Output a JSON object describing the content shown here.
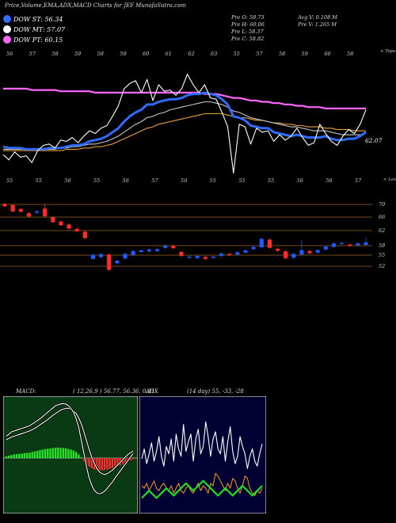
{
  "header": {
    "title": "Price,Volume,EMA,ADX,MACD Charts for JEF MunafaSutra.com",
    "legend": [
      {
        "label": "DOW ST: 56.34",
        "color": "#2f6bff"
      },
      {
        "label": "DOW MT: 57.07",
        "color": "#ffffff"
      },
      {
        "label": "DOW PT: 60.15",
        "color": "#ff66ff"
      }
    ],
    "ohlc_left": [
      "Pre O: 58.73",
      "Pre H: 60.06",
      "Pre L: 58.37",
      "Pre C: 58.82"
    ],
    "ohlc_right": [
      "Avg V: 0.108 M",
      "Pre V: 1.265 M"
    ]
  },
  "chart_data": [
    {
      "type": "line",
      "name": "price-ema-panel",
      "top_tick_labels": [
        "56",
        "57",
        "58",
        "59",
        "58",
        "59",
        "60",
        "61",
        "62",
        "63",
        "55",
        "57",
        "58",
        "59",
        "60",
        "58"
      ],
      "corner_label_top": "< Tops",
      "corner_label_bottom": "< Lows",
      "bottom_tick_labels": [
        "55",
        "55",
        "56",
        "55",
        "56",
        "57",
        "59",
        "55",
        "55",
        "55",
        "56",
        "56",
        "57"
      ],
      "last_value_label": "62.07",
      "series": [
        {
          "color": "#ffffff",
          "values": [
            56.6,
            56.2,
            56.8,
            56.4,
            56.5,
            56.0,
            56.9,
            57.3,
            57.4,
            57.1,
            57.7,
            57.6,
            57.9,
            57.5,
            58.0,
            58.4,
            58.2,
            58.6,
            58.8,
            59.5,
            60.3,
            61.6,
            62.0,
            62.2,
            61.3,
            62.3,
            60.7,
            61.9,
            61.4,
            61.5,
            61.1,
            61.6,
            62.7,
            61.9,
            61.3,
            61.9,
            60.9,
            60.8,
            59.8,
            58.7,
            55.2,
            58.9,
            58.7,
            57.4,
            58.6,
            58.3,
            58.4,
            57.6,
            58.1,
            57.7,
            58.0,
            58.6,
            57.9,
            57.3,
            57.5,
            58.9,
            58.2,
            57.6,
            57.3,
            58.0,
            58.5,
            58.2,
            58.9,
            60.0
          ]
        },
        {
          "color": "#2f6bff",
          "values": [
            57.2,
            57.1,
            57.1,
            57.1,
            57.0,
            57.0,
            57.0,
            57.0,
            57.1,
            57.1,
            57.1,
            57.2,
            57.3,
            57.3,
            57.4,
            57.6,
            57.7,
            57.8,
            58.0,
            58.3,
            58.6,
            59.1,
            59.5,
            59.8,
            60.0,
            60.4,
            60.4,
            60.6,
            60.7,
            60.8,
            60.8,
            60.9,
            61.1,
            61.2,
            61.2,
            61.3,
            61.2,
            61.1,
            60.8,
            60.4,
            59.5,
            59.4,
            59.2,
            58.8,
            58.7,
            58.6,
            58.6,
            58.3,
            58.2,
            58.1,
            58.0,
            58.1,
            58.0,
            57.9,
            57.9,
            57.9,
            58.0,
            57.8,
            57.7,
            57.7,
            57.8,
            57.8,
            58.0,
            58.3
          ]
        },
        {
          "color": "#c8c8c8",
          "values": [
            57.0,
            57.0,
            57.0,
            57.0,
            57.0,
            57.0,
            57.0,
            57.0,
            57.0,
            57.0,
            57.1,
            57.1,
            57.2,
            57.2,
            57.3,
            57.4,
            57.4,
            57.5,
            57.6,
            57.8,
            58.0,
            58.3,
            58.6,
            58.9,
            59.1,
            59.4,
            59.5,
            59.7,
            59.8,
            60.0,
            60.1,
            60.2,
            60.3,
            60.4,
            60.5,
            60.6,
            60.6,
            60.5,
            60.4,
            60.2,
            59.9,
            59.8,
            59.6,
            59.4,
            59.3,
            59.2,
            59.1,
            59.0,
            58.9,
            58.8,
            58.7,
            58.7,
            58.6,
            58.5,
            58.4,
            58.4,
            58.4,
            58.3,
            58.2,
            58.1,
            58.1,
            58.1,
            58.1,
            58.2
          ]
        },
        {
          "color": "#e8a23a",
          "values": [
            56.9,
            56.9,
            56.9,
            56.9,
            56.9,
            56.9,
            56.9,
            56.9,
            56.9,
            56.9,
            56.9,
            57.0,
            57.0,
            57.0,
            57.1,
            57.1,
            57.2,
            57.2,
            57.3,
            57.4,
            57.6,
            57.8,
            58.0,
            58.2,
            58.4,
            58.6,
            58.7,
            58.9,
            59.0,
            59.1,
            59.2,
            59.3,
            59.4,
            59.5,
            59.6,
            59.7,
            59.7,
            59.7,
            59.7,
            59.6,
            59.5,
            59.4,
            59.4,
            59.3,
            59.2,
            59.2,
            59.1,
            59.0,
            59.0,
            58.9,
            58.9,
            58.8,
            58.8,
            58.7,
            58.7,
            58.7,
            58.6,
            58.6,
            58.5,
            58.5,
            58.5,
            58.4,
            58.4,
            58.4
          ]
        },
        {
          "color": "#ff66ff",
          "values": [
            61.6,
            61.6,
            61.6,
            61.6,
            61.6,
            61.5,
            61.5,
            61.5,
            61.5,
            61.5,
            61.4,
            61.4,
            61.4,
            61.4,
            61.4,
            61.4,
            61.3,
            61.3,
            61.3,
            61.3,
            61.3,
            61.3,
            61.3,
            61.3,
            61.3,
            61.3,
            61.3,
            61.3,
            61.3,
            61.3,
            61.3,
            61.3,
            61.3,
            61.3,
            61.3,
            61.2,
            61.2,
            61.2,
            61.1,
            61.0,
            60.9,
            60.9,
            60.8,
            60.7,
            60.7,
            60.6,
            60.6,
            60.5,
            60.5,
            60.4,
            60.4,
            60.3,
            60.3,
            60.2,
            60.2,
            60.2,
            60.1,
            60.1,
            60.1,
            60.1,
            60.1,
            60.1,
            60.1,
            60.1
          ]
        }
      ]
    },
    {
      "type": "bar",
      "name": "candles-panel",
      "price_levels": [
        "70",
        "66",
        "62",
        "58",
        "55",
        "52"
      ],
      "candles": [
        {
          "o": 70.2,
          "c": 69.4,
          "h": 70.6,
          "l": 69.2
        },
        {
          "o": 69.8,
          "c": 67.8,
          "h": 70.1,
          "l": 67.5
        },
        {
          "o": 68.6,
          "c": 67.7,
          "h": 68.8,
          "l": 67.4
        },
        {
          "o": 67.2,
          "c": 66.2,
          "h": 67.6,
          "l": 65.8
        },
        {
          "o": 67.4,
          "c": 67.8,
          "h": 68.2,
          "l": 66.9
        },
        {
          "o": 68.7,
          "c": 66.3,
          "h": 70.1,
          "l": 66.0
        },
        {
          "o": 66.0,
          "c": 64.5,
          "h": 66.4,
          "l": 64.2
        },
        {
          "o": 64.7,
          "c": 63.6,
          "h": 65.1,
          "l": 63.3
        },
        {
          "o": 63.8,
          "c": 62.6,
          "h": 64.2,
          "l": 62.3
        },
        {
          "o": 62.5,
          "c": 61.8,
          "h": 63.0,
          "l": 61.5
        },
        {
          "o": 61.7,
          "c": 60.0,
          "h": 62.1,
          "l": 59.8
        },
        {
          "o": 54.0,
          "c": 55.1,
          "h": 55.4,
          "l": 53.8
        },
        {
          "o": 54.5,
          "c": 55.3,
          "h": 55.7,
          "l": 54.2
        },
        {
          "o": 55.2,
          "c": 51.0,
          "h": 55.6,
          "l": 50.6
        },
        {
          "o": 52.8,
          "c": 53.5,
          "h": 53.8,
          "l": 52.5
        },
        {
          "o": 54.1,
          "c": 55.4,
          "h": 55.8,
          "l": 53.8
        },
        {
          "o": 55.1,
          "c": 56.3,
          "h": 56.6,
          "l": 54.7
        },
        {
          "o": 56.0,
          "c": 56.5,
          "h": 56.8,
          "l": 55.7
        },
        {
          "o": 56.2,
          "c": 56.8,
          "h": 57.1,
          "l": 55.9
        },
        {
          "o": 56.3,
          "c": 56.9,
          "h": 57.2,
          "l": 56.0
        },
        {
          "o": 57.3,
          "c": 58.0,
          "h": 58.4,
          "l": 57.0
        },
        {
          "o": 57.9,
          "c": 57.2,
          "h": 58.3,
          "l": 56.9
        },
        {
          "o": 56.0,
          "c": 54.8,
          "h": 56.4,
          "l": 54.5
        },
        {
          "o": 54.3,
          "c": 54.6,
          "h": 54.9,
          "l": 54.0
        },
        {
          "o": 54.2,
          "c": 54.8,
          "h": 55.1,
          "l": 53.9
        },
        {
          "o": 54.5,
          "c": 54.0,
          "h": 54.8,
          "l": 53.7
        },
        {
          "o": 54.3,
          "c": 54.6,
          "h": 54.9,
          "l": 54.0
        },
        {
          "o": 54.8,
          "c": 55.5,
          "h": 55.9,
          "l": 54.5
        },
        {
          "o": 55.4,
          "c": 55.0,
          "h": 55.7,
          "l": 54.7
        },
        {
          "o": 55.2,
          "c": 55.9,
          "h": 56.2,
          "l": 54.8
        },
        {
          "o": 55.8,
          "c": 56.5,
          "h": 56.8,
          "l": 55.5
        },
        {
          "o": 56.9,
          "c": 57.6,
          "h": 57.9,
          "l": 56.6
        },
        {
          "o": 57.5,
          "c": 59.8,
          "h": 60.1,
          "l": 57.2
        },
        {
          "o": 59.6,
          "c": 57.3,
          "h": 59.9,
          "l": 57.0
        },
        {
          "o": 57.0,
          "c": 56.4,
          "h": 57.3,
          "l": 56.1
        },
        {
          "o": 56.2,
          "c": 54.2,
          "h": 56.5,
          "l": 53.9
        },
        {
          "o": 54.3,
          "c": 55.4,
          "h": 55.7,
          "l": 54.0
        },
        {
          "o": 55.2,
          "c": 56.6,
          "h": 59.5,
          "l": 54.9
        },
        {
          "o": 56.3,
          "c": 55.6,
          "h": 56.7,
          "l": 55.3
        },
        {
          "o": 55.8,
          "c": 56.6,
          "h": 56.9,
          "l": 55.5
        },
        {
          "o": 56.8,
          "c": 57.7,
          "h": 58.0,
          "l": 56.5
        },
        {
          "o": 57.6,
          "c": 58.6,
          "h": 58.9,
          "l": 57.3
        },
        {
          "o": 58.5,
          "c": 58.7,
          "h": 59.0,
          "l": 58.2
        },
        {
          "o": 58.3,
          "c": 57.9,
          "h": 58.6,
          "l": 57.6
        },
        {
          "o": 58.1,
          "c": 58.6,
          "h": 58.9,
          "l": 57.7
        },
        {
          "o": 58.2,
          "c": 58.9,
          "h": 60.2,
          "l": 58.0
        }
      ]
    },
    {
      "type": "bar",
      "name": "macd-panel",
      "label": "MACD:",
      "params": "( 12,26,9 ) 56.77, 56.36, 0.41",
      "histogram": [
        0.06,
        0.08,
        0.1,
        0.12,
        0.13,
        0.14,
        0.15,
        0.16,
        0.17,
        0.18,
        0.2,
        0.22,
        0.24,
        0.26,
        0.28,
        0.3,
        0.31,
        0.32,
        0.33,
        0.34,
        0.35,
        0.34,
        0.33,
        0.32,
        0.3,
        0.28,
        0.25,
        0.2,
        0.12,
        0.02,
        -0.1,
        -0.2,
        -0.28,
        -0.34,
        -0.38,
        -0.4,
        -0.41,
        -0.41,
        -0.4,
        -0.38,
        -0.36,
        -0.33,
        -0.3,
        -0.27,
        -0.24,
        -0.2,
        -0.16,
        -0.12,
        -0.08,
        -0.04
      ],
      "macd_line": [
        0.5,
        0.55,
        0.6,
        0.62,
        0.64,
        0.66,
        0.68,
        0.7,
        0.72,
        0.74,
        0.78,
        0.82,
        0.86,
        0.9,
        0.95,
        1.0,
        1.05,
        1.1,
        1.15,
        1.2,
        1.22,
        1.24,
        1.25,
        1.24,
        1.2,
        1.14,
        1.05,
        0.9,
        0.7,
        0.4,
        0.1,
        -0.2,
        -0.45,
        -0.62,
        -0.74,
        -0.8,
        -0.82,
        -0.8,
        -0.76,
        -0.7,
        -0.62,
        -0.55,
        -0.46,
        -0.38,
        -0.3,
        -0.22,
        -0.14,
        -0.06,
        0.02,
        0.1
      ],
      "signal_line": [
        0.42,
        0.45,
        0.48,
        0.5,
        0.52,
        0.54,
        0.56,
        0.58,
        0.6,
        0.62,
        0.65,
        0.68,
        0.72,
        0.76,
        0.8,
        0.84,
        0.88,
        0.93,
        0.98,
        1.02,
        1.06,
        1.1,
        1.12,
        1.14,
        1.14,
        1.12,
        1.08,
        1.02,
        0.92,
        0.78,
        0.6,
        0.4,
        0.2,
        0.02,
        -0.12,
        -0.24,
        -0.32,
        -0.36,
        -0.38,
        -0.36,
        -0.32,
        -0.28,
        -0.22,
        -0.16,
        -0.1,
        -0.04,
        0.02,
        0.08,
        0.12,
        0.16
      ]
    },
    {
      "type": "line",
      "name": "adx-panel",
      "label": "ADX",
      "params": "(14 day) 55, -33, -28",
      "series": [
        {
          "name": "DI+",
          "color": "#ffffff",
          "values": [
            42,
            50,
            38,
            46,
            55,
            40,
            48,
            60,
            44,
            36,
            52,
            46,
            58,
            40,
            62,
            50,
            44,
            70,
            48,
            56,
            62,
            40,
            58,
            66,
            46,
            52,
            72,
            60,
            44,
            58,
            64,
            50,
            46,
            60,
            40,
            56,
            68,
            48,
            38,
            44,
            60,
            52,
            46,
            34,
            44,
            50,
            40,
            36,
            46,
            54
          ]
        },
        {
          "name": "DI-",
          "color": "#ff9a1a",
          "values": [
            20,
            18,
            22,
            16,
            20,
            24,
            18,
            16,
            20,
            22,
            18,
            16,
            20,
            14,
            18,
            22,
            16,
            14,
            18,
            20,
            16,
            14,
            18,
            22,
            16,
            20,
            18,
            14,
            22,
            20,
            30,
            28,
            24,
            20,
            16,
            22,
            18,
            26,
            24,
            18,
            14,
            20,
            28,
            26,
            18,
            14,
            12,
            16,
            14,
            18
          ]
        },
        {
          "name": "ADX",
          "color": "#22dd22",
          "values": [
            10,
            12,
            14,
            16,
            14,
            12,
            10,
            12,
            14,
            16,
            18,
            16,
            14,
            12,
            14,
            16,
            18,
            20,
            22,
            20,
            18,
            16,
            18,
            20,
            22,
            24,
            22,
            20,
            18,
            16,
            14,
            12,
            14,
            16,
            18,
            16,
            14,
            12,
            14,
            16,
            18,
            20,
            18,
            16,
            14,
            12,
            14,
            16,
            18,
            20
          ]
        }
      ]
    }
  ]
}
